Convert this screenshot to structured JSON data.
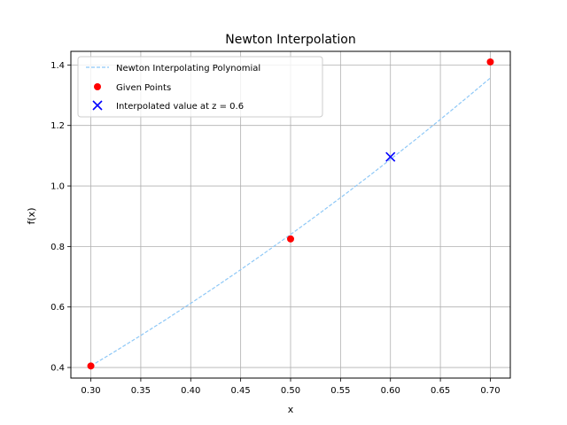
{
  "chart_data": {
    "type": "line",
    "title": "Newton Interpolation",
    "xlabel": "x",
    "ylabel": "f(x)",
    "xlim": [
      0.28,
      0.72
    ],
    "ylim": [
      0.365,
      1.445
    ],
    "grid": true,
    "legend_position": "top-left",
    "x_ticks": [
      "0.30",
      "0.35",
      "0.40",
      "0.45",
      "0.50",
      "0.55",
      "0.60",
      "0.65",
      "0.70"
    ],
    "y_ticks": [
      "0.4",
      "0.6",
      "0.8",
      "1.0",
      "1.2",
      "1.4"
    ],
    "series": [
      {
        "name": "Newton Interpolating Polynomial",
        "kind": "line",
        "style": "dashed",
        "color": "#8ec8f7",
        "x": [
          0.3,
          0.325,
          0.35,
          0.375,
          0.4,
          0.425,
          0.45,
          0.475,
          0.5,
          0.525,
          0.55,
          0.575,
          0.6,
          0.625,
          0.65,
          0.675,
          0.7
        ],
        "y": [
          0.405,
          0.4548,
          0.5059,
          0.5583,
          0.612,
          0.667,
          0.7233,
          0.7808,
          0.8397,
          0.8998,
          0.9613,
          1.024,
          1.088,
          1.1533,
          1.22,
          1.2879,
          1.357
        ]
      },
      {
        "name": "Given Points",
        "kind": "scatter",
        "marker": "circle",
        "color": "#ff0000",
        "x": [
          0.3,
          0.5,
          0.7
        ],
        "y": [
          0.405,
          0.825,
          1.41
        ]
      },
      {
        "name": "Interpolated value at z = 0.6",
        "kind": "scatter",
        "marker": "x",
        "color": "#0000ff",
        "x": [
          0.6
        ],
        "y": [
          1.096
        ]
      }
    ]
  }
}
